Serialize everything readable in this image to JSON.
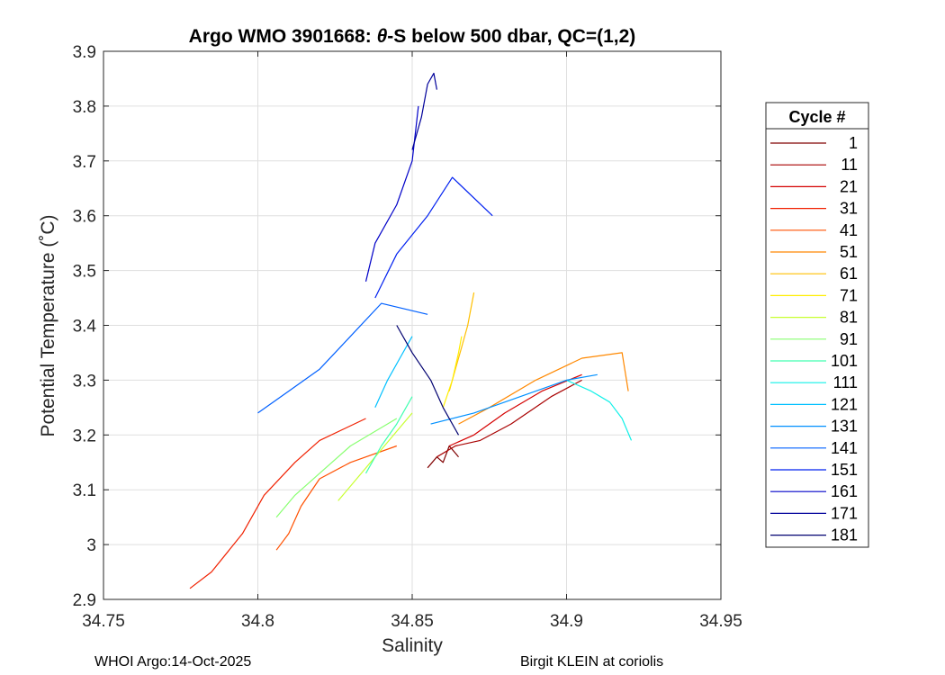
{
  "chart_data": {
    "type": "line",
    "title": "Argo WMO 3901668: θ-S below 500 dbar,  QC=(1,2)",
    "title_parts": {
      "prefix": "Argo WMO 3901668: ",
      "symbol": "θ",
      "suffix": "-S below 500 dbar,  QC=(1,2)"
    },
    "xlabel": "Salinity",
    "ylabel": "Potential Temperature (˚C)",
    "xlim": [
      34.75,
      34.95
    ],
    "ylim": [
      2.9,
      3.9
    ],
    "xticks": [
      "34.75",
      "34.8",
      "34.85",
      "34.9",
      "34.95"
    ],
    "yticks": [
      "2.9",
      "3",
      "3.1",
      "3.2",
      "3.3",
      "3.4",
      "3.5",
      "3.6",
      "3.7",
      "3.8",
      "3.9"
    ],
    "grid": true,
    "legend": {
      "title": "Cycle #",
      "placement": "outside-right",
      "entries": [
        {
          "label": "1",
          "color": "#800000"
        },
        {
          "label": "11",
          "color": "#a80000"
        },
        {
          "label": "21",
          "color": "#d40000"
        },
        {
          "label": "31",
          "color": "#f02000"
        },
        {
          "label": "41",
          "color": "#ff5000"
        },
        {
          "label": "51",
          "color": "#ff8800"
        },
        {
          "label": "61",
          "color": "#ffbf00"
        },
        {
          "label": "71",
          "color": "#ffee00"
        },
        {
          "label": "81",
          "color": "#c8ff30"
        },
        {
          "label": "91",
          "color": "#88ff70"
        },
        {
          "label": "101",
          "color": "#40ffb0"
        },
        {
          "label": "111",
          "color": "#10f0e8"
        },
        {
          "label": "121",
          "color": "#00c0ff"
        },
        {
          "label": "131",
          "color": "#0090ff"
        },
        {
          "label": "141",
          "color": "#0060ff"
        },
        {
          "label": "151",
          "color": "#0020f0"
        },
        {
          "label": "161",
          "color": "#0000c8"
        },
        {
          "label": "171",
          "color": "#00009a"
        },
        {
          "label": "181",
          "color": "#000070"
        }
      ]
    },
    "series": [
      {
        "name": "1",
        "color": "#800000",
        "points": [
          [
            34.855,
            3.14
          ],
          [
            34.858,
            3.16
          ],
          [
            34.86,
            3.15
          ],
          [
            34.862,
            3.18
          ],
          [
            34.865,
            3.16
          ]
        ]
      },
      {
        "name": "11",
        "color": "#a80000",
        "points": [
          [
            34.858,
            3.16
          ],
          [
            34.864,
            3.18
          ],
          [
            34.872,
            3.19
          ],
          [
            34.882,
            3.22
          ],
          [
            34.895,
            3.27
          ],
          [
            34.905,
            3.3
          ]
        ]
      },
      {
        "name": "21",
        "color": "#d40000",
        "points": [
          [
            34.862,
            3.18
          ],
          [
            34.87,
            3.2
          ],
          [
            34.88,
            3.24
          ],
          [
            34.892,
            3.28
          ],
          [
            34.905,
            3.31
          ]
        ]
      },
      {
        "name": "31",
        "color": "#f02000",
        "points": [
          [
            34.778,
            2.92
          ],
          [
            34.785,
            2.95
          ],
          [
            34.795,
            3.02
          ],
          [
            34.802,
            3.09
          ],
          [
            34.812,
            3.15
          ],
          [
            34.82,
            3.19
          ],
          [
            34.835,
            3.23
          ]
        ]
      },
      {
        "name": "41",
        "color": "#ff5000",
        "points": [
          [
            34.806,
            2.99
          ],
          [
            34.81,
            3.02
          ],
          [
            34.814,
            3.07
          ],
          [
            34.82,
            3.12
          ],
          [
            34.83,
            3.15
          ],
          [
            34.845,
            3.18
          ]
        ]
      },
      {
        "name": "51",
        "color": "#ff8800",
        "points": [
          [
            34.865,
            3.22
          ],
          [
            34.875,
            3.25
          ],
          [
            34.89,
            3.3
          ],
          [
            34.905,
            3.34
          ],
          [
            34.918,
            3.35
          ],
          [
            34.92,
            3.28
          ]
        ]
      },
      {
        "name": "61",
        "color": "#ffbf00",
        "points": [
          [
            34.862,
            3.28
          ],
          [
            34.864,
            3.32
          ],
          [
            34.866,
            3.36
          ],
          [
            34.868,
            3.4
          ],
          [
            34.87,
            3.46
          ]
        ]
      },
      {
        "name": "71",
        "color": "#ffee00",
        "points": [
          [
            34.86,
            3.25
          ],
          [
            34.863,
            3.3
          ],
          [
            34.865,
            3.35
          ],
          [
            34.866,
            3.38
          ]
        ]
      },
      {
        "name": "81",
        "color": "#c8ff30",
        "points": [
          [
            34.826,
            3.08
          ],
          [
            34.832,
            3.12
          ],
          [
            34.838,
            3.16
          ],
          [
            34.844,
            3.2
          ],
          [
            34.85,
            3.24
          ]
        ]
      },
      {
        "name": "91",
        "color": "#88ff70",
        "points": [
          [
            34.806,
            3.05
          ],
          [
            34.812,
            3.09
          ],
          [
            34.82,
            3.13
          ],
          [
            34.83,
            3.18
          ],
          [
            34.845,
            3.23
          ]
        ]
      },
      {
        "name": "101",
        "color": "#40ffb0",
        "points": [
          [
            34.835,
            3.13
          ],
          [
            34.84,
            3.18
          ],
          [
            34.845,
            3.22
          ],
          [
            34.85,
            3.27
          ]
        ]
      },
      {
        "name": "111",
        "color": "#10f0e8",
        "points": [
          [
            34.9,
            3.3
          ],
          [
            34.908,
            3.28
          ],
          [
            34.914,
            3.26
          ],
          [
            34.918,
            3.23
          ],
          [
            34.921,
            3.19
          ]
        ]
      },
      {
        "name": "121",
        "color": "#00c0ff",
        "points": [
          [
            34.838,
            3.25
          ],
          [
            34.842,
            3.3
          ],
          [
            34.846,
            3.34
          ],
          [
            34.85,
            3.38
          ]
        ]
      },
      {
        "name": "131",
        "color": "#0090ff",
        "points": [
          [
            34.856,
            3.22
          ],
          [
            34.87,
            3.24
          ],
          [
            34.885,
            3.27
          ],
          [
            34.9,
            3.3
          ],
          [
            34.91,
            3.31
          ]
        ]
      },
      {
        "name": "141",
        "color": "#0060ff",
        "points": [
          [
            34.8,
            3.24
          ],
          [
            34.81,
            3.28
          ],
          [
            34.82,
            3.32
          ],
          [
            34.83,
            3.38
          ],
          [
            34.84,
            3.44
          ],
          [
            34.855,
            3.42
          ]
        ]
      },
      {
        "name": "151",
        "color": "#0020f0",
        "points": [
          [
            34.838,
            3.45
          ],
          [
            34.845,
            3.53
          ],
          [
            34.855,
            3.6
          ],
          [
            34.863,
            3.67
          ],
          [
            34.876,
            3.6
          ]
        ]
      },
      {
        "name": "161",
        "color": "#0000c8",
        "points": [
          [
            34.835,
            3.48
          ],
          [
            34.838,
            3.55
          ],
          [
            34.845,
            3.62
          ],
          [
            34.85,
            3.7
          ],
          [
            34.852,
            3.8
          ]
        ]
      },
      {
        "name": "171",
        "color": "#00009a",
        "points": [
          [
            34.85,
            3.72
          ],
          [
            34.853,
            3.78
          ],
          [
            34.855,
            3.84
          ],
          [
            34.857,
            3.86
          ],
          [
            34.858,
            3.83
          ]
        ]
      },
      {
        "name": "181",
        "color": "#000070",
        "points": [
          [
            34.845,
            3.4
          ],
          [
            34.85,
            3.35
          ],
          [
            34.856,
            3.3
          ],
          [
            34.86,
            3.25
          ],
          [
            34.865,
            3.2
          ]
        ]
      }
    ]
  },
  "footer": {
    "left": "WHOI Argo:14-Oct-2025",
    "right": "Birgit KLEIN at coriolis"
  }
}
